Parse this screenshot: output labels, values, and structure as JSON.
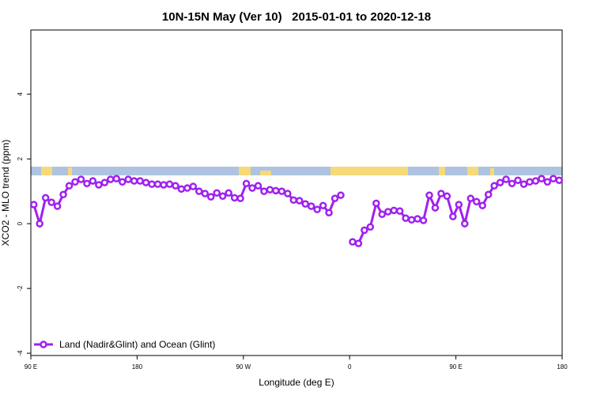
{
  "chart_data": {
    "type": "line",
    "title": "10N-15N May (Ver 10)   2015-01-01 to 2020-12-18",
    "xlabel": "Longitude (deg E)",
    "ylabel": "XCO2 - MLO trend (ppm)",
    "xlim": [
      90,
      540
    ],
    "ylim": [
      -4.07,
      5.98
    ],
    "xticks": [
      {
        "value": 90,
        "label": "90 E"
      },
      180,
      {
        "value": 270,
        "label": "90 W"
      },
      {
        "value": 360,
        "label": "0"
      },
      {
        "value": 450,
        "label": "90 E"
      },
      {
        "value": 540,
        "label": "180"
      }
    ],
    "yticks": [
      -4,
      -2,
      0,
      2,
      4
    ],
    "legend": "lower left",
    "x": [
      92.5,
      97.5,
      102.5,
      107.5,
      112.5,
      117.5,
      122.5,
      127.5,
      132.5,
      137.5,
      142.5,
      147.5,
      152.5,
      157.5,
      162.5,
      167.5,
      172.5,
      177.5,
      182.5,
      187.5,
      192.5,
      197.5,
      202.5,
      207.5,
      212.5,
      217.5,
      222.5,
      227.5,
      232.5,
      237.5,
      242.5,
      247.5,
      252.5,
      257.5,
      262.5,
      267.5,
      272.5,
      277.5,
      282.5,
      287.5,
      292.5,
      297.5,
      302.5,
      307.5,
      312.5,
      317.5,
      322.5,
      327.5,
      332.5,
      337.5,
      342.5,
      347.5,
      352.5,
      357.5,
      362.5,
      367.5,
      372.5,
      377.5,
      382.5,
      387.5,
      392.5,
      397.5,
      402.5,
      407.5,
      412.5,
      417.5,
      422.5,
      427.5,
      432.5,
      437.5,
      442.5,
      447.5,
      452.5,
      457.5,
      462.5,
      467.5,
      472.5,
      477.5,
      482.5,
      487.5,
      492.5,
      497.5,
      502.5,
      507.5,
      512.5,
      517.5,
      522.5,
      527.5,
      532.5,
      537.5
    ],
    "series": [
      {
        "name": "Land (Nadir&Glint) and Ocean (Glint)",
        "color": "#a020f0",
        "values": [
          0.59,
          0.0,
          0.8,
          0.66,
          0.54,
          0.9,
          1.17,
          1.29,
          1.37,
          1.24,
          1.32,
          1.2,
          1.27,
          1.37,
          1.39,
          1.29,
          1.37,
          1.32,
          1.32,
          1.27,
          1.22,
          1.22,
          1.2,
          1.22,
          1.17,
          1.07,
          1.1,
          1.15,
          1.0,
          0.93,
          0.83,
          0.95,
          0.85,
          0.95,
          0.8,
          0.78,
          1.24,
          1.1,
          1.17,
          1.0,
          1.05,
          1.02,
          1.0,
          0.93,
          0.73,
          0.71,
          0.61,
          0.54,
          0.44,
          0.56,
          0.34,
          0.78,
          0.88,
          null,
          -0.56,
          -0.61,
          -0.2,
          -0.1,
          0.63,
          0.29,
          0.37,
          0.41,
          0.39,
          0.17,
          0.12,
          0.15,
          0.1,
          0.88,
          0.49,
          0.93,
          0.85,
          0.22,
          0.59,
          0.0,
          0.78,
          0.68,
          0.56,
          0.9,
          1.17,
          1.27,
          1.37,
          1.24,
          1.34,
          1.22,
          1.29,
          1.32,
          1.39,
          1.29,
          1.39,
          1.34
        ]
      }
    ]
  }
}
